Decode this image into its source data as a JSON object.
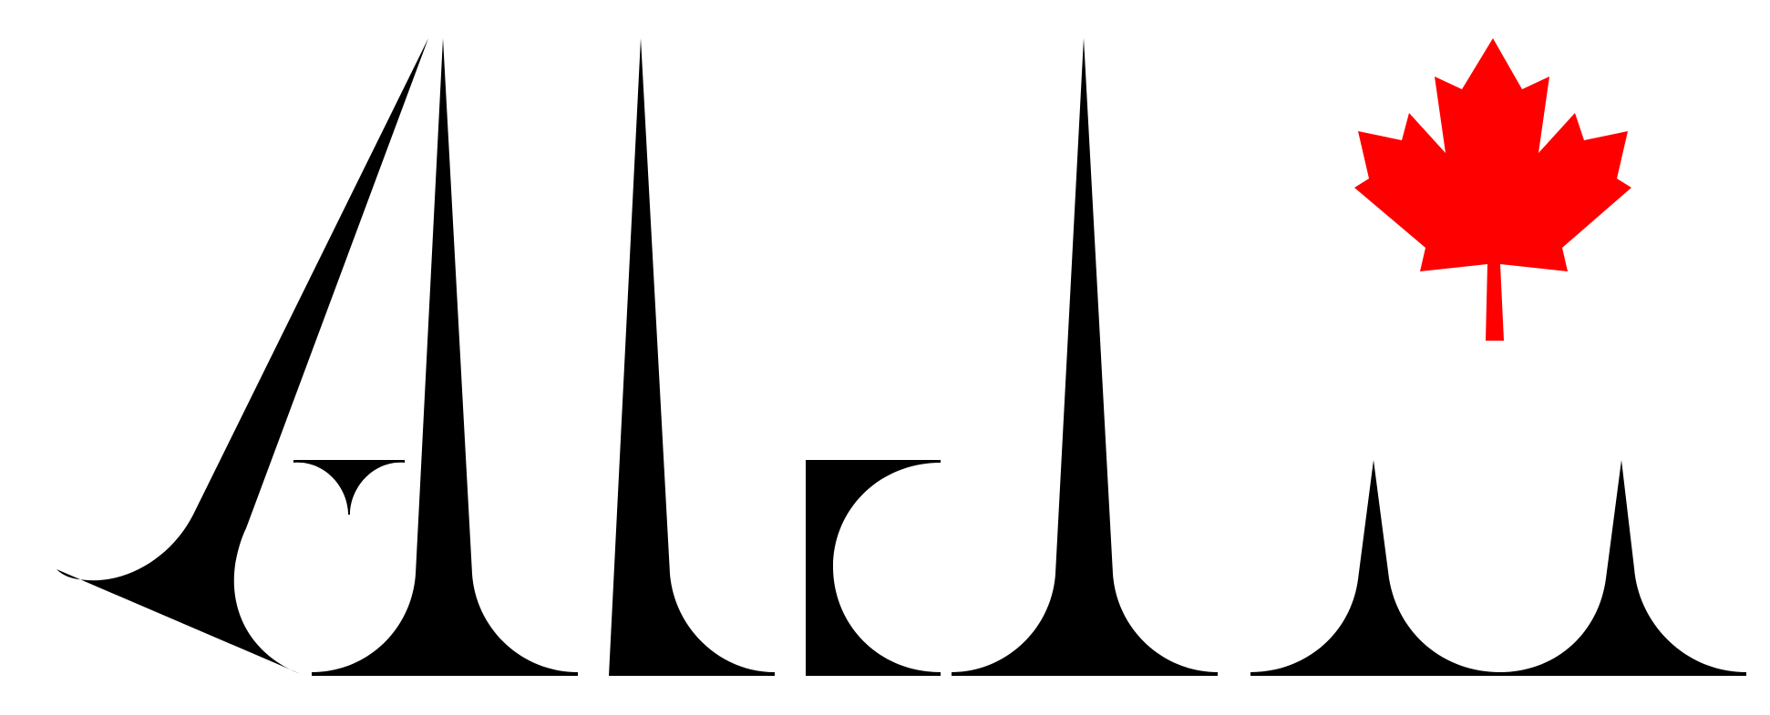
{
  "logo": {
    "wordmark_color": "#000000",
    "leaf_color": "#ff0000",
    "background_color": "#ffffff",
    "leaf_icon": "maple-leaf-icon"
  }
}
